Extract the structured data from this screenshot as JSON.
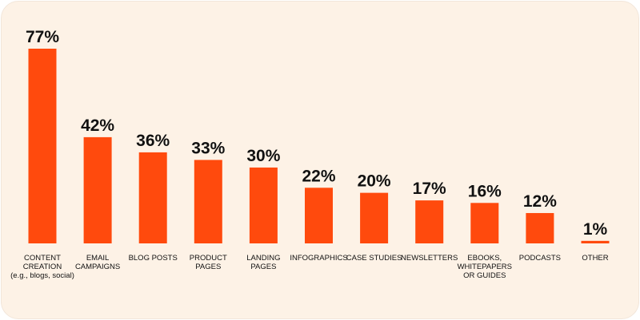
{
  "chart_data": {
    "type": "bar",
    "categories": [
      "CONTENT\nCREATION\n(e.g., blogs, social)",
      "EMAIL\nCAMPAIGNS",
      "BLOG POSTS",
      "PRODUCT\nPAGES",
      "LANDING\nPAGES",
      "INFOGRAPHICS",
      "CASE STUDIES",
      "NEWSLETTERS",
      "EBOOKS,\nWHITEPAPERS\nOR GUIDES",
      "PODCASTS",
      "OTHER"
    ],
    "values": [
      77,
      42,
      36,
      33,
      30,
      22,
      20,
      17,
      16,
      12,
      1
    ],
    "value_labels": [
      "77%",
      "42%",
      "36%",
      "33%",
      "30%",
      "22%",
      "20%",
      "17%",
      "16%",
      "12%",
      "1%"
    ],
    "color": "#ff4a0d"
  }
}
